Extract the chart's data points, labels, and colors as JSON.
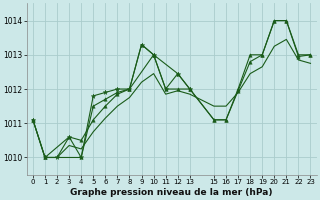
{
  "title": "Graphe pression niveau de la mer (hPa)",
  "bg_color": "#cce8e8",
  "grid_color": "#aacccc",
  "line_color": "#1a5c1a",
  "xlim": [
    -0.5,
    23.5
  ],
  "ylim": [
    1009.5,
    1014.5
  ],
  "yticks": [
    1010,
    1011,
    1012,
    1013,
    1014
  ],
  "xticks": [
    0,
    1,
    2,
    3,
    4,
    5,
    6,
    7,
    8,
    9,
    10,
    11,
    12,
    13,
    15,
    16,
    17,
    18,
    19,
    20,
    21,
    22,
    23
  ],
  "line1_x": [
    0,
    1,
    2,
    3,
    4,
    5,
    6,
    7,
    8,
    9,
    10,
    11,
    12,
    13
  ],
  "line1_y": [
    1011.1,
    1010.0,
    1010.0,
    1010.6,
    1010.0,
    1011.8,
    1011.9,
    1012.0,
    1012.0,
    1013.3,
    1013.0,
    1012.0,
    1012.45,
    1012.0
  ],
  "line2_x": [
    0,
    1,
    3,
    4,
    5,
    6,
    7,
    8,
    10,
    12,
    13,
    15,
    16,
    17,
    18,
    19,
    20,
    21,
    22,
    23
  ],
  "line2_y": [
    1011.1,
    1010.0,
    1010.6,
    1010.5,
    1011.1,
    1011.5,
    1011.85,
    1012.0,
    1013.0,
    1012.45,
    1012.0,
    1011.1,
    1011.1,
    1011.95,
    1012.8,
    1013.0,
    1014.0,
    1014.0,
    1012.95,
    1013.0
  ],
  "line3_x": [
    0,
    1,
    4,
    5,
    6,
    7,
    8,
    9,
    10,
    11,
    12,
    13,
    15,
    16,
    17,
    18,
    19,
    20,
    21,
    22,
    23
  ],
  "line3_y": [
    1011.1,
    1010.0,
    1010.0,
    1011.5,
    1011.7,
    1011.9,
    1012.0,
    1013.3,
    1013.0,
    1012.0,
    1012.0,
    1012.0,
    1011.1,
    1011.1,
    1012.0,
    1013.0,
    1013.0,
    1014.0,
    1014.0,
    1013.0,
    1013.0
  ],
  "line4_x": [
    1,
    2,
    3,
    4,
    5,
    6,
    7,
    8,
    9,
    10,
    11,
    12,
    13,
    15,
    16,
    17,
    18,
    19,
    20,
    21,
    22,
    23
  ],
  "line4_y": [
    1010.0,
    1010.0,
    1010.35,
    1010.25,
    1010.75,
    1011.15,
    1011.5,
    1011.75,
    1012.2,
    1012.45,
    1011.85,
    1011.95,
    1011.85,
    1011.5,
    1011.5,
    1011.9,
    1012.45,
    1012.65,
    1013.25,
    1013.45,
    1012.85,
    1012.75
  ]
}
